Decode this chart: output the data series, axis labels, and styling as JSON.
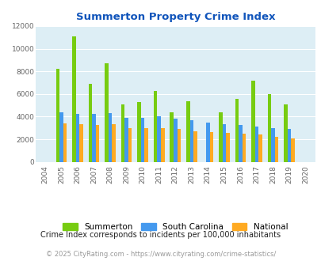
{
  "title": "Summerton Property Crime Index",
  "years": [
    2004,
    2005,
    2006,
    2007,
    2008,
    2009,
    2010,
    2011,
    2012,
    2013,
    2014,
    2015,
    2016,
    2017,
    2018,
    2019,
    2020
  ],
  "summerton": [
    0,
    8200,
    11100,
    6900,
    8700,
    5100,
    5300,
    6250,
    4400,
    5350,
    0,
    4400,
    5600,
    7200,
    6000,
    5050,
    0
  ],
  "south_carolina": [
    0,
    4400,
    4250,
    4250,
    4300,
    3900,
    3900,
    4000,
    3800,
    3650,
    3500,
    3300,
    3250,
    3150,
    3000,
    2900,
    0
  ],
  "national": [
    0,
    3400,
    3300,
    3250,
    3300,
    3000,
    2950,
    2950,
    2900,
    2700,
    2650,
    2550,
    2500,
    2450,
    2200,
    2100,
    0
  ],
  "summerton_color": "#77cc11",
  "south_carolina_color": "#4499ee",
  "national_color": "#ffaa22",
  "bg_color": "#ddeef5",
  "ylim": [
    0,
    12000
  ],
  "yticks": [
    0,
    2000,
    4000,
    6000,
    8000,
    10000,
    12000
  ],
  "bar_width": 0.22,
  "legend_labels": [
    "Summerton",
    "South Carolina",
    "National"
  ],
  "footnote1": "Crime Index corresponds to incidents per 100,000 inhabitants",
  "footnote2": "© 2025 CityRating.com - https://www.cityrating.com/crime-statistics/",
  "title_color": "#1155bb",
  "footnote1_color": "#222222",
  "footnote2_color": "#999999"
}
